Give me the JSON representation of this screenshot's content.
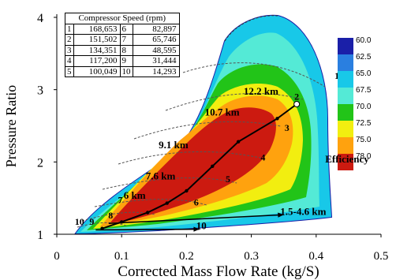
{
  "chart_data": {
    "type": "contour",
    "title": "",
    "xlabel": "Corrected Mass Flow Rate (kg/S)",
    "ylabel": "Pressure Ratio",
    "xlim": [
      0,
      0.5
    ],
    "ylim": [
      1,
      4
    ],
    "x_ticks": [
      "0",
      "0.1",
      "0.2",
      "0.3",
      "0.4",
      "0.5"
    ],
    "y_ticks": [
      "1",
      "2",
      "3",
      "4"
    ],
    "colorbar": {
      "title": "Efficiency",
      "levels": [
        "60.0",
        "62.5",
        "65.0",
        "67.5",
        "70.0",
        "72.5",
        "75.0",
        "78.0"
      ],
      "colors": [
        "#1a1fa8",
        "#2a7fe0",
        "#18c8e8",
        "#54ead6",
        "#22c418",
        "#f2ee10",
        "#ffa20e",
        "#cc1a10"
      ]
    },
    "speed_table": {
      "header": "Compressor Speed (rpm)",
      "rows": [
        {
          "a": "1",
          "ra": "168,653",
          "b": "6",
          "rb": "82,897"
        },
        {
          "a": "2",
          "ra": "151,502",
          "b": "7",
          "rb": "65,746"
        },
        {
          "a": "3",
          "ra": "134,351",
          "b": "8",
          "rb": "48,595"
        },
        {
          "a": "4",
          "ra": "117,200",
          "b": "9",
          "rb": "31,444"
        },
        {
          "a": "5",
          "ra": "100,049",
          "b": "10",
          "rb": "14,293"
        }
      ]
    },
    "speed_labels": [
      {
        "label": "1",
        "x": 0.432,
        "y": 3.15
      },
      {
        "label": "2",
        "x": 0.37,
        "y": 2.86
      },
      {
        "label": "3",
        "x": 0.355,
        "y": 2.43
      },
      {
        "label": "4",
        "x": 0.318,
        "y": 2.02
      },
      {
        "label": "5",
        "x": 0.264,
        "y": 1.72
      },
      {
        "label": "6",
        "x": 0.215,
        "y": 1.4
      },
      {
        "label": "7",
        "x": 0.098,
        "y": 1.43
      },
      {
        "label": "8",
        "x": 0.083,
        "y": 1.22
      },
      {
        "label": "9",
        "x": 0.054,
        "y": 1.13
      },
      {
        "label": "10",
        "x": 0.035,
        "y": 1.13
      }
    ],
    "operating_line": {
      "x": [
        0.07,
        0.1,
        0.14,
        0.17,
        0.2,
        0.24,
        0.28,
        0.34,
        0.37
      ],
      "y": [
        1.08,
        1.17,
        1.3,
        1.43,
        1.6,
        1.94,
        2.28,
        2.6,
        2.8
      ]
    },
    "altitude_labels": [
      {
        "label": "12.2 km",
        "x": 0.315,
        "y": 2.93
      },
      {
        "label": "10.7 km",
        "x": 0.255,
        "y": 2.64
      },
      {
        "label": "9.1 km",
        "x": 0.18,
        "y": 2.19
      },
      {
        "label": "7.6 km",
        "x": 0.16,
        "y": 1.76
      },
      {
        "label": "6 km",
        "x": 0.12,
        "y": 1.49
      },
      {
        "label": "1.5-4.6 km",
        "x": 0.38,
        "y": 1.27
      },
      {
        "label": "10",
        "x": 0.223,
        "y": 1.07
      }
    ],
    "arrows": [
      {
        "from": [
          0.08,
          1.15
        ],
        "to": [
          0.35,
          1.27
        ]
      },
      {
        "from": [
          0.06,
          1.06
        ],
        "to": [
          0.22,
          1.07
        ]
      }
    ]
  }
}
